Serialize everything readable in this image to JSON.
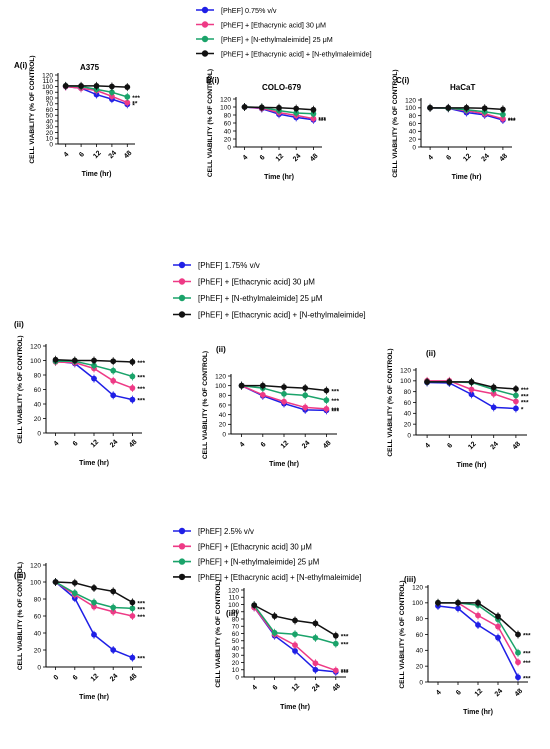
{
  "colors": {
    "blue": "#1f1fe6",
    "pink": "#ee3a86",
    "green": "#1aa36a",
    "black": "#111111"
  },
  "legends": [
    [
      "[PhEF] 0.75% v/v",
      "[PhEF] + [Ethacrynic acid] 30 μM",
      "[PhEF] + [N-ethylmaleimide] 25 μM",
      "[PhEF] + [Ethacrynic acid] + [N-ethylmaleimide]"
    ],
    [
      "[PhEF] 1.75% v/v",
      "[PhEF] + [Ethacrynic acid] 30 μM",
      "[PhEF] + [N-ethylmaleimide] 25 μM",
      "[PhEF] + [Ethacrynic acid] + [N-ethylmaleimide]"
    ],
    [
      "[PhEF] 2.5% v/v",
      "[PhEF] + [Ethacrynic acid] 30 μM",
      "[PhEF] + [N-ethylmaleimide] 25 μM",
      "[PhEF] + [Ethacrynic acid] + [N-ethylmaleimide]"
    ]
  ],
  "chart_data": [
    {
      "type": "line",
      "panel": "A(i)",
      "title": "A375",
      "xlabel": "Time (hr)",
      "ylabel": "CELL VIABILITY (% OF CONTROL)",
      "ylim": [
        0,
        120
      ],
      "yticks": [
        0,
        10,
        20,
        30,
        40,
        50,
        60,
        70,
        80,
        90,
        100,
        110,
        120
      ],
      "x": [
        "4",
        "6",
        "12",
        "24",
        "48"
      ],
      "series": [
        {
          "name": "[PhEF] 0.75% v/v",
          "values": [
            100,
            97,
            86,
            78,
            69
          ]
        },
        {
          "name": "[PhEF] + [Ethacrynic acid] 30 μM",
          "values": [
            100,
            97,
            93,
            83,
            72
          ]
        },
        {
          "name": "[PhEF] + [N-ethylmaleimide] 25 μM",
          "values": [
            101,
            100,
            95,
            90,
            82
          ]
        },
        {
          "name": "[PhEF] + [Ethacrynic acid] + [N-ethylmaleimide]",
          "values": [
            101,
            101,
            101,
            100,
            99
          ]
        }
      ],
      "annotations": [
        "*",
        "**",
        "***"
      ]
    },
    {
      "type": "line",
      "panel": "B(i)",
      "title": "COLO-679",
      "xlabel": "Time (hr)",
      "ylabel": "CELL VIABILITY (% OF CONTROL)",
      "ylim": [
        0,
        120
      ],
      "yticks": [
        0,
        20,
        40,
        60,
        80,
        100,
        120
      ],
      "x": [
        "4",
        "6",
        "12",
        "24",
        "48"
      ],
      "series": [
        {
          "name": "[PhEF] 0.75% v/v",
          "values": [
            100,
            96,
            82,
            74,
            68
          ]
        },
        {
          "name": "[PhEF] + [Ethacrynic acid] 30 μM",
          "values": [
            100,
            97,
            86,
            79,
            71
          ]
        },
        {
          "name": "[PhEF] + [N-ethylmaleimide] 25 μM",
          "values": [
            100,
            99,
            91,
            85,
            83
          ]
        },
        {
          "name": "[PhEF] + [Ethacrynic acid] + [N-ethylmaleimide]",
          "values": [
            100,
            99,
            98,
            96,
            93
          ]
        }
      ],
      "annotations": [
        "***",
        "***"
      ]
    },
    {
      "type": "line",
      "panel": "C(i)",
      "title": "HaCaT",
      "xlabel": "Time (hr)",
      "ylabel": "CELL VIABILITY (% OF CONTROL)",
      "ylim": [
        0,
        120
      ],
      "yticks": [
        0,
        20,
        40,
        60,
        80,
        100,
        120
      ],
      "x": [
        "4",
        "6",
        "12",
        "24",
        "48"
      ],
      "series": [
        {
          "name": "[PhEF] 0.75% v/v",
          "values": [
            100,
            99,
            88,
            82,
            69
          ]
        },
        {
          "name": "[PhEF] + [Ethacrynic acid] 30 μM",
          "values": [
            100,
            99,
            93,
            85,
            72
          ]
        },
        {
          "name": "[PhEF] + [N-ethylmaleimide] 25 μM",
          "values": [
            100,
            99,
            95,
            90,
            83
          ]
        },
        {
          "name": "[PhEF] + [Ethacrynic acid] + [N-ethylmaleimide]",
          "values": [
            100,
            100,
            100,
            99,
            96
          ]
        }
      ],
      "annotations": [
        "***",
        "***"
      ]
    },
    {
      "type": "line",
      "panel": "(ii)",
      "title": "",
      "xlabel": "Time (hr)",
      "ylabel": "CELL VIABILITY (% OF CONTROL)",
      "ylim": [
        0,
        120
      ],
      "yticks": [
        0,
        20,
        40,
        60,
        80,
        100,
        120
      ],
      "x": [
        "4",
        "6",
        "12",
        "24",
        "48"
      ],
      "series": [
        {
          "name": "[PhEF] 1.75% v/v",
          "values": [
            99,
            96,
            75,
            52,
            46
          ]
        },
        {
          "name": "[PhEF] + [Ethacrynic acid] 30 μM",
          "values": [
            98,
            97,
            89,
            72,
            62
          ]
        },
        {
          "name": "[PhEF] + [N-ethylmaleimide] 25 μM",
          "values": [
            99,
            99,
            93,
            86,
            78
          ]
        },
        {
          "name": "[PhEF] + [Ethacrynic acid] + [N-ethylmaleimide]",
          "values": [
            101,
            100,
            100,
            99,
            98
          ]
        }
      ],
      "annotations": [
        "***",
        "***",
        "***",
        "***"
      ]
    },
    {
      "type": "line",
      "panel": "(ii)",
      "title": "",
      "xlabel": "Time (hr)",
      "ylabel": "CELL VIABILITY (% OF CONTROL)",
      "ylim": [
        0,
        120
      ],
      "yticks": [
        0,
        20,
        40,
        60,
        80,
        100,
        120
      ],
      "x": [
        "4",
        "6",
        "12",
        "24",
        "48"
      ],
      "series": [
        {
          "name": "[PhEF] 1.75% v/v",
          "values": [
            100,
            79,
            63,
            50,
            49
          ]
        },
        {
          "name": "[PhEF] + [Ethacrynic acid] 30 μM",
          "values": [
            100,
            81,
            67,
            55,
            52
          ]
        },
        {
          "name": "[PhEF] + [N-ethylmaleimide] 25 μM",
          "values": [
            100,
            95,
            83,
            80,
            70
          ]
        },
        {
          "name": "[PhEF] + [Ethacrynic acid] + [N-ethylmaleimide]",
          "values": [
            100,
            100,
            97,
            95,
            90
          ]
        }
      ],
      "annotations": [
        "***",
        "***",
        "***",
        "***"
      ]
    },
    {
      "type": "line",
      "panel": "(ii)",
      "title": "",
      "xlabel": "Time (hr)",
      "ylabel": "CELL VIABILITY (% OF CONTROL)",
      "ylim": [
        0,
        120
      ],
      "yticks": [
        0,
        20,
        40,
        60,
        80,
        100,
        120
      ],
      "x": [
        "4",
        "6",
        "12",
        "24",
        "48"
      ],
      "series": [
        {
          "name": "[PhEF] 1.75% v/v",
          "values": [
            97,
            96,
            75,
            51,
            49
          ]
        },
        {
          "name": "[PhEF] + [Ethacrynic acid] 30 μM",
          "values": [
            100,
            100,
            84,
            76,
            62
          ]
        },
        {
          "name": "[PhEF] + [N-ethylmaleimide] 25 μM",
          "values": [
            98,
            98,
            97,
            84,
            73
          ]
        },
        {
          "name": "[PhEF] + [Ethacrynic acid] + [N-ethylmaleimide]",
          "values": [
            98,
            98,
            98,
            88,
            85
          ]
        }
      ],
      "annotations": [
        "*",
        "***",
        "***",
        "***"
      ]
    },
    {
      "type": "line",
      "panel": "(iii)",
      "title": "",
      "xlabel": "Time (hr)",
      "ylabel": "CELL VIABILITY (% OF CONTROL)",
      "ylim": [
        0,
        120
      ],
      "yticks": [
        0,
        20,
        40,
        60,
        80,
        100,
        120
      ],
      "x": [
        "0",
        "6",
        "12",
        "24",
        "48"
      ],
      "series": [
        {
          "name": "[PhEF] 2.5% v/v",
          "values": [
            100,
            81,
            38,
            20,
            11
          ]
        },
        {
          "name": "[PhEF] + [Ethacrynic acid] 30 μM",
          "values": [
            100,
            85,
            71,
            65,
            60
          ]
        },
        {
          "name": "[PhEF] + [N-ethylmaleimide] 25 μM",
          "values": [
            100,
            87,
            76,
            70,
            69
          ]
        },
        {
          "name": "[PhEF] + [Ethacrynic acid] + [N-ethylmaleimide]",
          "values": [
            100,
            99,
            93,
            89,
            76
          ]
        }
      ],
      "annotations": [
        "***",
        "***",
        "***",
        "***"
      ]
    },
    {
      "type": "line",
      "panel": "(iii)",
      "title": "",
      "xlabel": "Time (hr)",
      "ylabel": "CELL VIABILITY (% OF CONTROL)",
      "ylim": [
        0,
        120
      ],
      "yticks": [
        0,
        10,
        20,
        30,
        40,
        50,
        60,
        70,
        80,
        90,
        100,
        110,
        120
      ],
      "x": [
        "4",
        "6",
        "12",
        "24",
        "48"
      ],
      "series": [
        {
          "name": "[PhEF] 2.5% v/v",
          "values": [
            96,
            57,
            36,
            10,
            7
          ]
        },
        {
          "name": "[PhEF] + [Ethacrynic acid] 30 μM",
          "values": [
            96,
            59,
            44,
            19,
            9
          ]
        },
        {
          "name": "[PhEF] + [N-ethylmaleimide] 25 μM",
          "values": [
            99,
            61,
            59,
            54,
            46
          ]
        },
        {
          "name": "[PhEF] + [Ethacrynic acid] + [N-ethylmaleimide]",
          "values": [
            99,
            84,
            78,
            74,
            57
          ]
        }
      ],
      "annotations": [
        "***",
        "***",
        "***",
        "***"
      ]
    },
    {
      "type": "line",
      "panel": "(iii)",
      "title": "",
      "xlabel": "Time (hr)",
      "ylabel": "CELL VIABILITY (% OF CONTROL)",
      "ylim": [
        0,
        120
      ],
      "yticks": [
        0,
        20,
        40,
        60,
        80,
        100,
        120
      ],
      "x": [
        "4",
        "6",
        "12",
        "24",
        "48"
      ],
      "series": [
        {
          "name": "[PhEF] 2.5% v/v",
          "values": [
            96,
            93,
            72,
            56,
            6
          ]
        },
        {
          "name": "[PhEF] + [Ethacrynic acid] 30 μM",
          "values": [
            100,
            100,
            84,
            70,
            25
          ]
        },
        {
          "name": "[PhEF] + [N-ethylmaleimide] 25 μM",
          "values": [
            100,
            100,
            97,
            79,
            37
          ]
        },
        {
          "name": "[PhEF] + [Ethacrynic acid] + [N-ethylmaleimide]",
          "values": [
            100,
            100,
            100,
            83,
            60
          ]
        }
      ],
      "annotations": [
        "***",
        "***",
        "***",
        "***"
      ]
    }
  ]
}
